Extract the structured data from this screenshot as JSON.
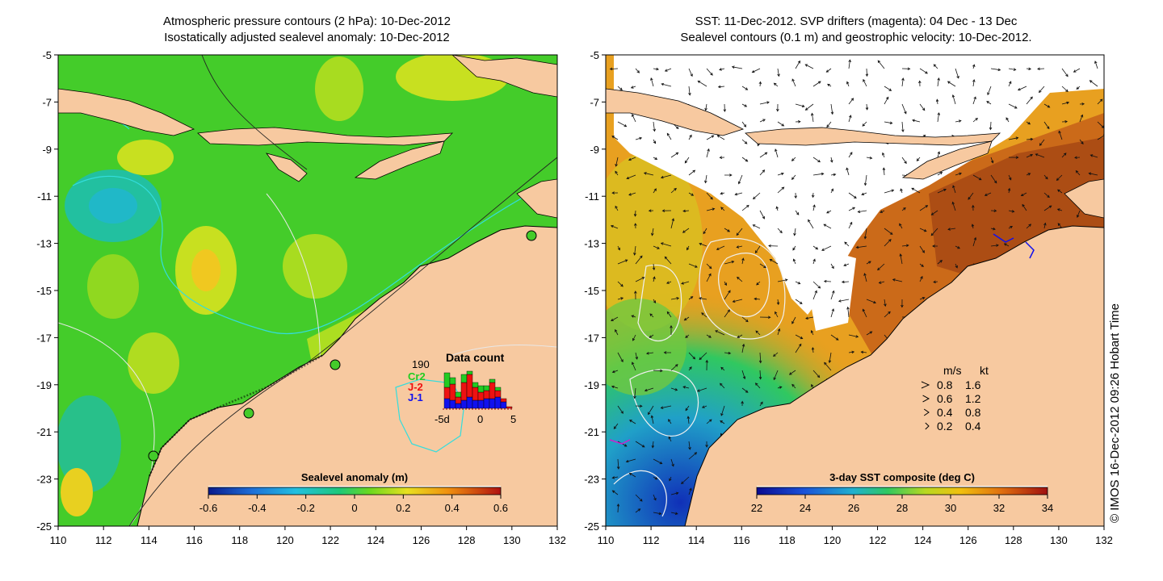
{
  "left_panel": {
    "title_line1": "Atmospheric pressure contours (2 hPa): 10-Dec-2012",
    "title_line2": "Isostatically adjusted sealevel anomaly: 10-Dec-2012",
    "colorbar": {
      "title": "Sealevel anomaly (m)",
      "ticks": [
        "-0.6",
        "-0.4",
        "-0.2",
        "0",
        "0.2",
        "0.4",
        "0.6"
      ],
      "range": [
        -0.6,
        0.6
      ]
    },
    "data_count": {
      "title": "Data count",
      "max_label": "190",
      "sats": [
        {
          "name": "Cr2",
          "color": "#22cc22"
        },
        {
          "name": "J-2",
          "color": "#ee1111"
        },
        {
          "name": "J-1",
          "color": "#1111ee"
        }
      ],
      "x_ticks": [
        "-5d",
        "0",
        "5"
      ]
    }
  },
  "right_panel": {
    "title_line1": "SST: 11-Dec-2012. SVP drifters (magenta): 04 Dec - 13 Dec",
    "title_line2": "Sealevel contours (0.1 m) and geostrophic velocity: 10-Dec-2012.",
    "colorbar": {
      "title": "3-day SST composite (deg C)",
      "ticks": [
        "22",
        "24",
        "26",
        "28",
        "30",
        "32",
        "34"
      ],
      "range": [
        22,
        34
      ]
    },
    "velocity_legend": {
      "header_ms": "m/s",
      "header_kt": "kt",
      "rows": [
        {
          "ms": "0.8",
          "kt": "1.6"
        },
        {
          "ms": "0.6",
          "kt": "1.2"
        },
        {
          "ms": "0.4",
          "kt": "0.8"
        },
        {
          "ms": "0.2",
          "kt": "0.4"
        }
      ]
    }
  },
  "axes": {
    "x_ticks": [
      "110",
      "112",
      "114",
      "116",
      "118",
      "120",
      "122",
      "124",
      "126",
      "128",
      "130",
      "132"
    ],
    "y_ticks": [
      "-5",
      "-7",
      "-9",
      "-11",
      "-13",
      "-15",
      "-17",
      "-19",
      "-21",
      "-23",
      "-25"
    ],
    "lon_range": [
      110,
      132
    ],
    "lat_range": [
      -25,
      -5
    ]
  },
  "colors": {
    "land": "#f7c9a0",
    "cloud": "#ffffff"
  },
  "copyright": "© IMOS 16-Dec-2012 09:26 Hobart Time"
}
